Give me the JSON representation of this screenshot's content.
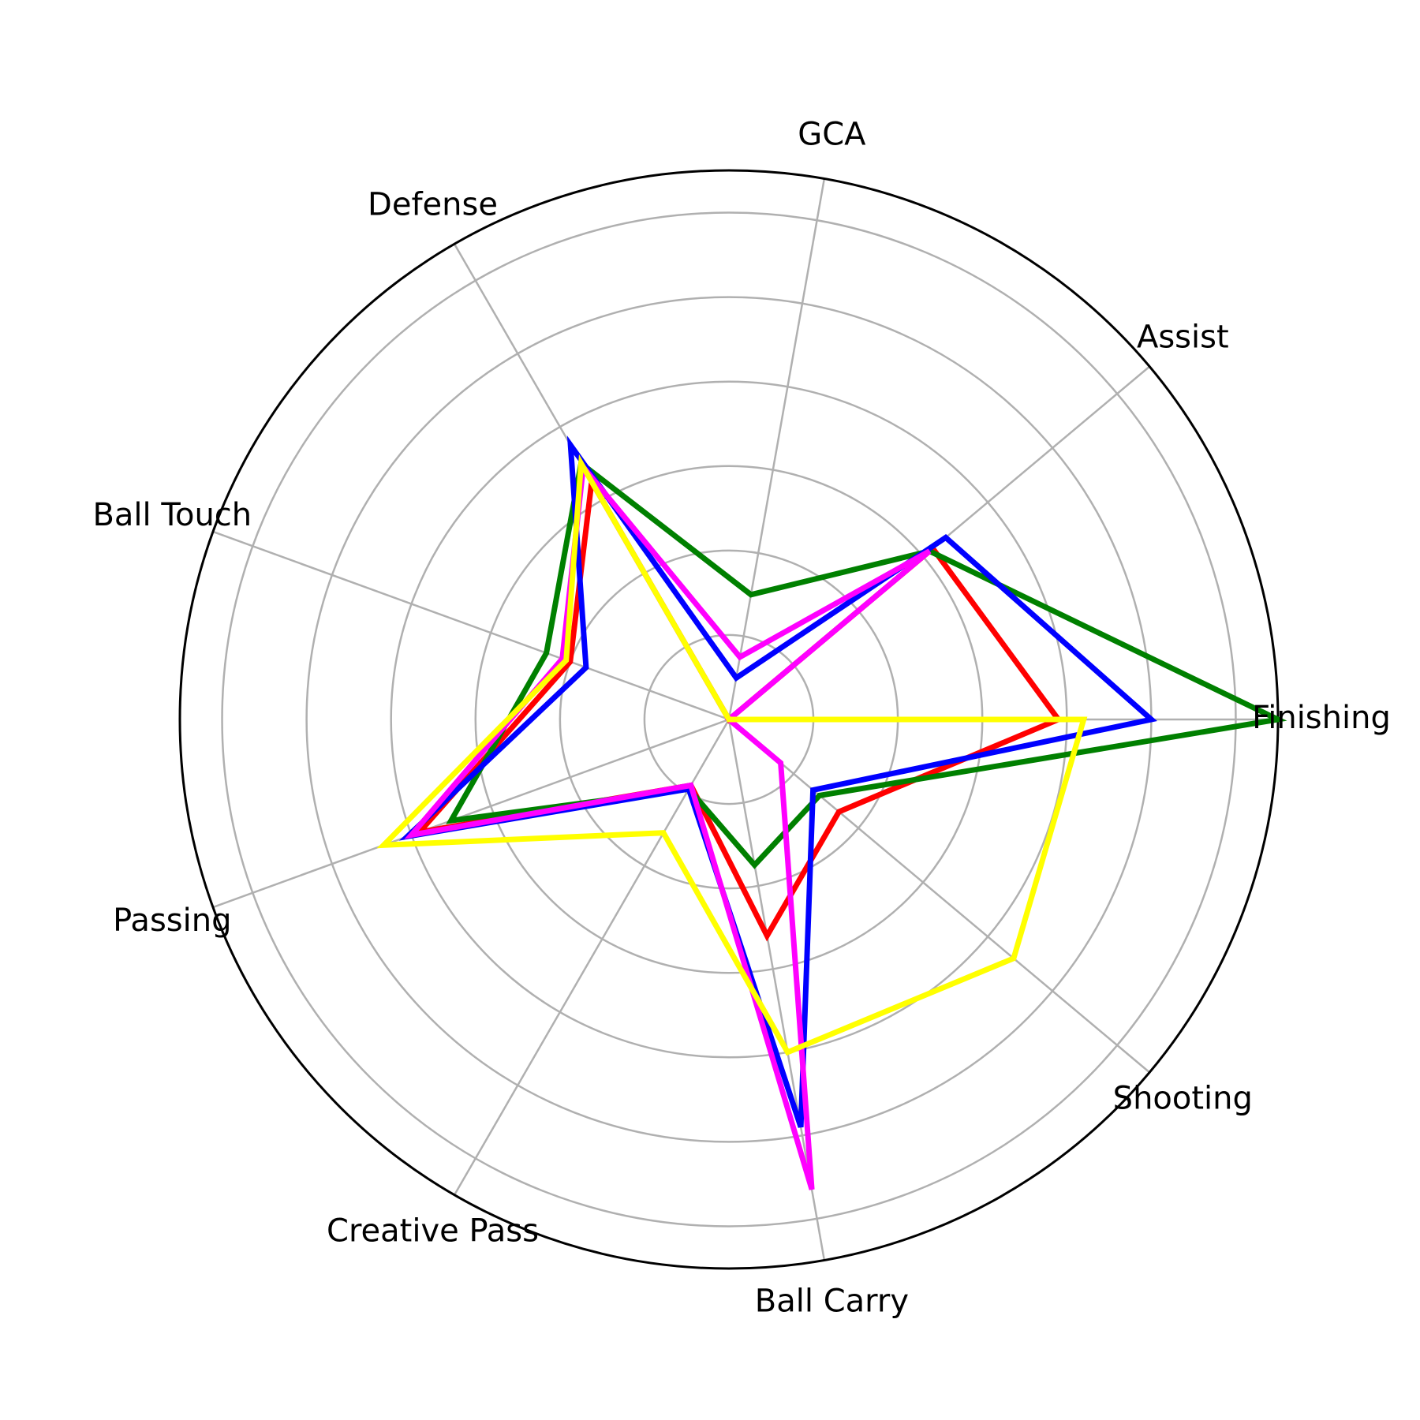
{
  "chart_data": {
    "type": "radar",
    "title": "",
    "categories": [
      "Finishing",
      "Assist",
      "GCA",
      "Defense",
      "Ball Touch",
      "Passing",
      "Creative Pass",
      "Ball Carry",
      "Shooting"
    ],
    "rmax": 1.3,
    "grid_rings": [
      0.2,
      0.4,
      0.6,
      0.8,
      1.0,
      1.2
    ],
    "grid": true,
    "legend": "none",
    "series": [
      {
        "color": "#ff0000",
        "values": [
          0.78,
          0.63,
          0.0,
          0.65,
          0.4,
          0.78,
          0.18,
          0.52,
          0.34
        ]
      },
      {
        "color": "#008000",
        "values": [
          1.3,
          0.62,
          0.3,
          0.7,
          0.46,
          0.7,
          0.19,
          0.35,
          0.28
        ]
      },
      {
        "color": "#0000ff",
        "values": [
          1.0,
          0.67,
          0.1,
          0.75,
          0.36,
          0.81,
          0.19,
          0.98,
          0.26
        ]
      },
      {
        "color": "#ff00ff",
        "values": [
          0.0,
          0.62,
          0.15,
          0.69,
          0.42,
          0.8,
          0.18,
          1.13,
          0.16
        ]
      },
      {
        "color": "#ffff00",
        "values": [
          0.84,
          0.0,
          0.0,
          0.7,
          0.41,
          0.87,
          0.31,
          0.8,
          0.88
        ]
      }
    ]
  }
}
